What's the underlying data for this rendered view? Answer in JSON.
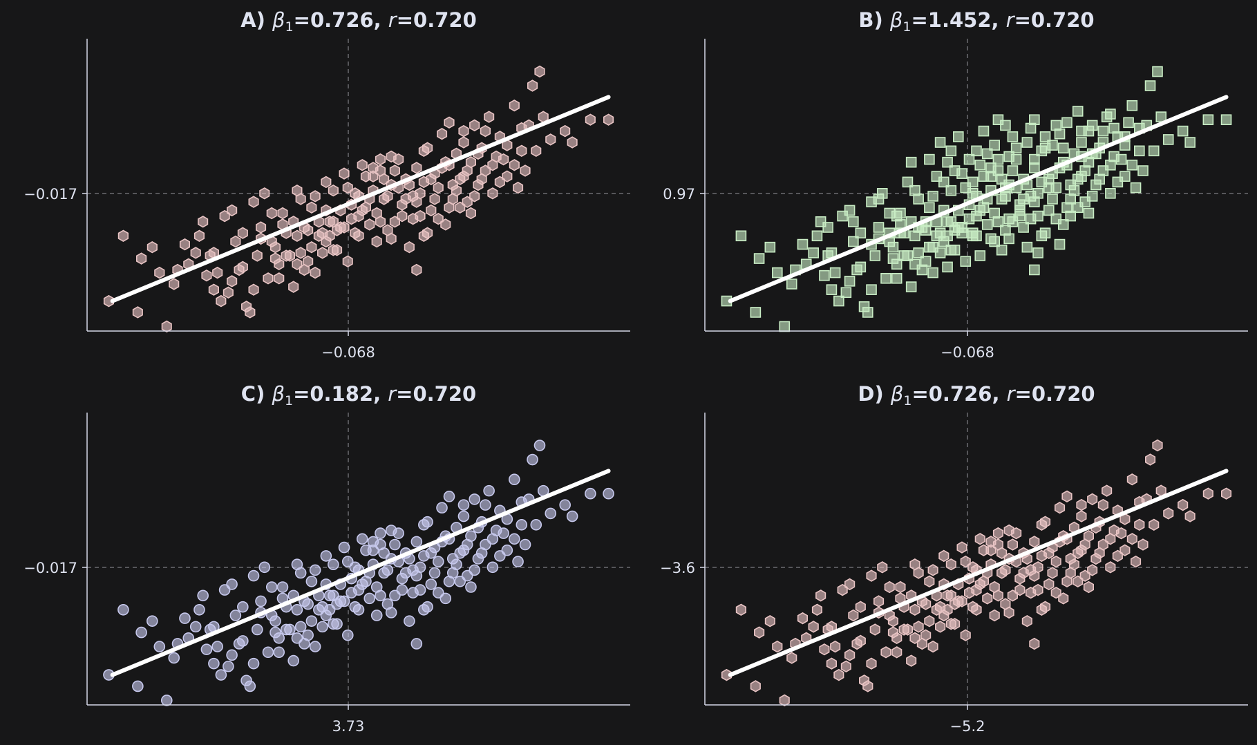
{
  "chart_data": [
    {
      "id": "A",
      "type": "scatter",
      "title_prefix": "A)",
      "beta_label": "β",
      "beta_sub": "1",
      "beta_value": "=0.726, ",
      "r_label": "r",
      "r_value": "=0.720",
      "slope": 0.726,
      "r": 0.72,
      "marker": "hexagon",
      "color": "#e8c4c4",
      "x_ref_label": "−0.068",
      "y_ref_label": "−0.017",
      "x_ref": 0.0,
      "y_ref": 0.0,
      "xlim": [
        -3.6,
        3.9
      ],
      "ylim": [
        -2.28,
        2.88
      ],
      "fit_line": {
        "x": [
          -3.25,
          3.6
        ],
        "y": [
          -1.75,
          1.85
        ]
      }
    },
    {
      "id": "B",
      "type": "scatter",
      "title_prefix": "B)",
      "beta_label": "β",
      "beta_sub": "1",
      "beta_value": "=1.452, ",
      "r_label": "r",
      "r_value": "=0.720",
      "slope": 1.452,
      "r": 0.72,
      "marker": "square",
      "color": "#c8ecc4",
      "x_ref_label": "−0.068",
      "y_ref_label": "0.97",
      "x_ref": 0.0,
      "y_ref": 0.0,
      "xlim": [
        -3.6,
        3.9
      ],
      "ylim": [
        -2.28,
        2.88
      ],
      "fit_line": {
        "x": [
          -3.25,
          3.6
        ],
        "y": [
          -1.75,
          1.85
        ]
      }
    },
    {
      "id": "C",
      "type": "scatter",
      "title_prefix": "C)",
      "beta_label": "β",
      "beta_sub": "1",
      "beta_value": "=0.182, ",
      "r_label": "r",
      "r_value": "=0.720",
      "slope": 0.182,
      "r": 0.72,
      "marker": "circle",
      "color": "#c6c8ec",
      "x_ref_label": "3.73",
      "y_ref_label": "−0.017",
      "x_ref": 0.0,
      "y_ref": 0.0,
      "xlim": [
        -3.6,
        3.9
      ],
      "ylim": [
        -2.28,
        2.88
      ],
      "fit_line": {
        "x": [
          -3.25,
          3.6
        ],
        "y": [
          -1.75,
          1.85
        ]
      }
    },
    {
      "id": "D",
      "type": "scatter",
      "title_prefix": "D)",
      "beta_label": "β",
      "beta_sub": "1",
      "beta_value": "=0.726, ",
      "r_label": "r",
      "r_value": "=0.720",
      "slope": 0.726,
      "r": 0.72,
      "marker": "hexagon",
      "color": "#e8c4c4",
      "x_ref_label": "−5.2",
      "y_ref_label": "−3.6",
      "x_ref": 0.0,
      "y_ref": 0.0,
      "xlim": [
        -3.6,
        3.9
      ],
      "ylim": [
        -2.28,
        2.88
      ],
      "fit_line": {
        "x": [
          -3.25,
          3.6
        ],
        "y": [
          -1.75,
          1.85
        ]
      }
    }
  ],
  "points_std": [
    [
      -3.3,
      -1.75
    ],
    [
      -3.1,
      -0.6
    ],
    [
      -2.85,
      -1.0
    ],
    [
      -2.6,
      -1.25
    ],
    [
      -2.5,
      -2.2
    ],
    [
      -2.35,
      -1.2
    ],
    [
      -2.25,
      -0.75
    ],
    [
      -2.1,
      -0.9
    ],
    [
      -2.0,
      -0.35
    ],
    [
      -1.95,
      -1.3
    ],
    [
      -1.85,
      -1.55
    ],
    [
      -1.8,
      -1.25
    ],
    [
      -1.7,
      -0.25
    ],
    [
      -1.65,
      -1.6
    ],
    [
      -1.6,
      -1.4
    ],
    [
      -1.55,
      -0.7
    ],
    [
      -1.5,
      -1.2
    ],
    [
      -1.4,
      -1.85
    ],
    [
      -1.35,
      -1.95
    ],
    [
      -1.3,
      0.0
    ],
    [
      -1.25,
      -0.95
    ],
    [
      -1.2,
      -0.65
    ],
    [
      -1.15,
      0.15
    ],
    [
      -1.1,
      -1.35
    ],
    [
      -1.0,
      -0.8
    ],
    [
      -0.95,
      -1.1
    ],
    [
      -0.9,
      -0.4
    ],
    [
      -0.85,
      -0.55
    ],
    [
      -0.8,
      -0.95
    ],
    [
      -0.75,
      -0.35
    ],
    [
      -0.7,
      -1.1
    ],
    [
      -0.65,
      0.05
    ],
    [
      -0.6,
      -0.45
    ],
    [
      -0.55,
      -1.05
    ],
    [
      -0.5,
      -0.8
    ],
    [
      -0.45,
      -1.25
    ],
    [
      -0.4,
      -0.35
    ],
    [
      -0.35,
      -0.9
    ],
    [
      -0.3,
      -0.15
    ],
    [
      -0.25,
      -0.6
    ],
    [
      -0.2,
      0.2
    ],
    [
      -0.15,
      -0.85
    ],
    [
      -0.1,
      -0.45
    ],
    [
      -0.05,
      0.5
    ],
    [
      0.0,
      -1.05
    ],
    [
      0.05,
      -0.3
    ],
    [
      0.1,
      0.15
    ],
    [
      0.15,
      -0.6
    ],
    [
      0.2,
      -0.15
    ],
    [
      0.25,
      0.45
    ],
    [
      0.3,
      -0.4
    ],
    [
      0.35,
      0.2
    ],
    [
      0.4,
      -0.7
    ],
    [
      0.45,
      0.55
    ],
    [
      0.5,
      0.05
    ],
    [
      0.55,
      -0.5
    ],
    [
      0.6,
      0.3
    ],
    [
      0.65,
      -0.35
    ],
    [
      0.7,
      0.75
    ],
    [
      0.75,
      -0.05
    ],
    [
      0.8,
      0.4
    ],
    [
      0.85,
      -0.8
    ],
    [
      0.9,
      0.1
    ],
    [
      0.95,
      0.6
    ],
    [
      1.0,
      -0.25
    ],
    [
      1.05,
      0.35
    ],
    [
      1.1,
      0.95
    ],
    [
      1.15,
      -0.15
    ],
    [
      1.2,
      0.5
    ],
    [
      1.25,
      0.25
    ],
    [
      1.3,
      1.2
    ],
    [
      1.35,
      -0.4
    ],
    [
      1.4,
      0.65
    ],
    [
      1.45,
      0.05
    ],
    [
      1.5,
      0.85
    ],
    [
      1.55,
      0.4
    ],
    [
      1.6,
      1.05
    ],
    [
      1.65,
      0.0
    ],
    [
      1.7,
      0.7
    ],
    [
      1.75,
      1.35
    ],
    [
      1.8,
      0.3
    ],
    [
      1.85,
      0.95
    ],
    [
      1.9,
      0.55
    ],
    [
      1.95,
      1.5
    ],
    [
      2.0,
      0.15
    ],
    [
      2.05,
      0.8
    ],
    [
      2.1,
      1.15
    ],
    [
      2.2,
      0.45
    ],
    [
      2.3,
      1.7
    ],
    [
      2.4,
      0.9
    ],
    [
      2.5,
      1.35
    ],
    [
      2.55,
      2.05
    ],
    [
      2.65,
      2.3
    ],
    [
      2.7,
      1.5
    ],
    [
      3.0,
      1.25
    ],
    [
      3.1,
      1.05
    ],
    [
      3.35,
      1.45
    ],
    [
      3.6,
      1.45
    ],
    [
      -2.9,
      -1.95
    ],
    [
      -2.7,
      -0.8
    ],
    [
      -2.4,
      -1.45
    ],
    [
      -2.2,
      -1.1
    ],
    [
      -2.05,
      -0.6
    ],
    [
      -1.9,
      -0.95
    ],
    [
      -1.75,
      -1.75
    ],
    [
      -1.45,
      -0.55
    ],
    [
      -1.05,
      -0.2
    ],
    [
      -0.95,
      -1.35
    ],
    [
      -0.75,
      -1.5
    ],
    [
      -0.6,
      -1.2
    ],
    [
      -0.5,
      -0.1
    ],
    [
      -0.4,
      -0.6
    ],
    [
      -0.3,
      0.35
    ],
    [
      -0.2,
      -0.35
    ],
    [
      -0.1,
      -0.15
    ],
    [
      0.0,
      0.25
    ],
    [
      0.1,
      -0.55
    ],
    [
      0.2,
      0.65
    ],
    [
      0.3,
      0.05
    ],
    [
      0.4,
      -0.2
    ],
    [
      0.5,
      0.4
    ],
    [
      0.6,
      -0.65
    ],
    [
      0.7,
      0.25
    ],
    [
      0.8,
      0.05
    ],
    [
      0.9,
      -0.3
    ],
    [
      1.0,
      0.15
    ],
    [
      1.1,
      -0.55
    ],
    [
      1.2,
      0.05
    ],
    [
      1.3,
      0.6
    ],
    [
      1.4,
      -0.1
    ],
    [
      1.5,
      0.2
    ],
    [
      1.6,
      0.45
    ],
    [
      1.7,
      -0.2
    ],
    [
      1.8,
      0.85
    ],
    [
      1.9,
      1.25
    ],
    [
      2.0,
      0.65
    ],
    [
      2.1,
      0.35
    ],
    [
      2.2,
      1.0
    ],
    [
      2.3,
      0.65
    ],
    [
      2.4,
      1.3
    ],
    [
      2.6,
      0.9
    ],
    [
      2.8,
      1.1
    ],
    [
      -1.6,
      -0.15
    ],
    [
      -1.3,
      -1.55
    ],
    [
      -1.2,
      -0.45
    ],
    [
      -1.0,
      -1.0
    ],
    [
      -0.9,
      -0.2
    ],
    [
      -0.7,
      0.2
    ],
    [
      -0.55,
      -0.5
    ],
    [
      -0.45,
      0.1
    ],
    [
      -0.35,
      -0.55
    ],
    [
      -0.25,
      -0.35
    ],
    [
      -0.15,
      -0.5
    ],
    [
      0.05,
      -0.05
    ],
    [
      0.15,
      0.1
    ],
    [
      0.25,
      -0.1
    ],
    [
      0.35,
      0.45
    ],
    [
      0.45,
      -0.35
    ],
    [
      0.55,
      0.1
    ],
    [
      0.65,
      0.55
    ],
    [
      0.75,
      -0.25
    ],
    [
      0.85,
      0.3
    ],
    [
      0.95,
      0.0
    ],
    [
      1.05,
      0.9
    ],
    [
      1.15,
      0.4
    ],
    [
      1.25,
      -0.3
    ],
    [
      1.35,
      0.7
    ],
    [
      1.45,
      0.3
    ],
    [
      1.55,
      -0.1
    ],
    [
      1.65,
      0.55
    ],
    [
      1.75,
      0.1
    ],
    [
      1.85,
      0.4
    ],
    [
      2.15,
      0.75
    ],
    [
      2.35,
      0.25
    ],
    [
      2.45,
      0.55
    ],
    [
      -1.85,
      -0.9
    ],
    [
      -1.45,
      -1.15
    ],
    [
      -0.85,
      -0.95
    ],
    [
      -0.65,
      -0.9
    ],
    [
      -0.05,
      -0.45
    ],
    [
      0.95,
      -1.2
    ],
    [
      1.4,
      1.4
    ],
    [
      1.6,
      1.25
    ],
    [
      0.6,
      0.8
    ],
    [
      -0.3,
      -0.7
    ],
    [
      -0.7,
      -0.6
    ],
    [
      0.15,
      -0.25
    ],
    [
      0.45,
      0.75
    ],
    [
      1.05,
      -0.6
    ],
    [
      -1.05,
      -0.7
    ],
    [
      -0.2,
      -0.85
    ],
    [
      0.35,
      0.6
    ]
  ],
  "panel_b_extra": [
    [
      -0.35,
      1.05
    ],
    [
      0.25,
      1.25
    ],
    [
      0.55,
      1.35
    ],
    [
      0.85,
      1.05
    ],
    [
      -0.2,
      0.9
    ],
    [
      0.95,
      1.45
    ],
    [
      1.25,
      1.35
    ],
    [
      0.15,
      0.9
    ],
    [
      -0.5,
      0.75
    ],
    [
      0.7,
      0.95
    ],
    [
      1.55,
      1.6
    ],
    [
      -0.1,
      1.15
    ],
    [
      0.4,
      1.0
    ],
    [
      1.1,
      1.15
    ],
    [
      -0.75,
      0.7
    ],
    [
      0.05,
      0.75
    ],
    [
      1.7,
      1.25
    ],
    [
      2.05,
      1.3
    ],
    [
      -0.05,
      -0.55
    ],
    [
      -0.45,
      -0.8
    ],
    [
      0.5,
      -0.85
    ],
    [
      -1.05,
      -0.55
    ],
    [
      0.8,
      -0.45
    ],
    [
      -0.65,
      -0.45
    ],
    [
      0.2,
      -0.95
    ],
    [
      1.3,
      -0.75
    ],
    [
      -0.25,
      -1.15
    ],
    [
      0.6,
      -0.3
    ],
    [
      -0.9,
      -0.55
    ],
    [
      0.1,
      -0.6
    ],
    [
      1.0,
      -0.9
    ],
    [
      -0.55,
      -0.35
    ],
    [
      0.35,
      -0.65
    ],
    [
      -1.3,
      -0.75
    ],
    [
      1.45,
      -0.25
    ],
    [
      -0.15,
      0.55
    ],
    [
      0.45,
      1.45
    ],
    [
      0.9,
      1.3
    ],
    [
      1.9,
      1.05
    ],
    [
      2.25,
      1.4
    ],
    [
      -1.2,
      0.05
    ],
    [
      -0.8,
      0.35
    ],
    [
      -0.4,
      0.45
    ],
    [
      0.3,
      0.85
    ],
    [
      0.65,
      1.15
    ],
    [
      1.2,
      1.0
    ],
    [
      1.6,
      0.8
    ],
    [
      2.0,
      1.55
    ],
    [
      -1.55,
      -0.35
    ],
    [
      -1.9,
      -0.45
    ],
    [
      -0.95,
      -0.25
    ],
    [
      0.75,
      -0.15
    ],
    [
      1.15,
      0.25
    ],
    [
      -0.25,
      0.7
    ],
    [
      0.1,
      0.35
    ],
    [
      0.55,
      0.25
    ],
    [
      0.95,
      0.75
    ],
    [
      1.35,
      0.95
    ],
    [
      1.75,
      0.85
    ],
    [
      2.2,
      1.15
    ]
  ]
}
